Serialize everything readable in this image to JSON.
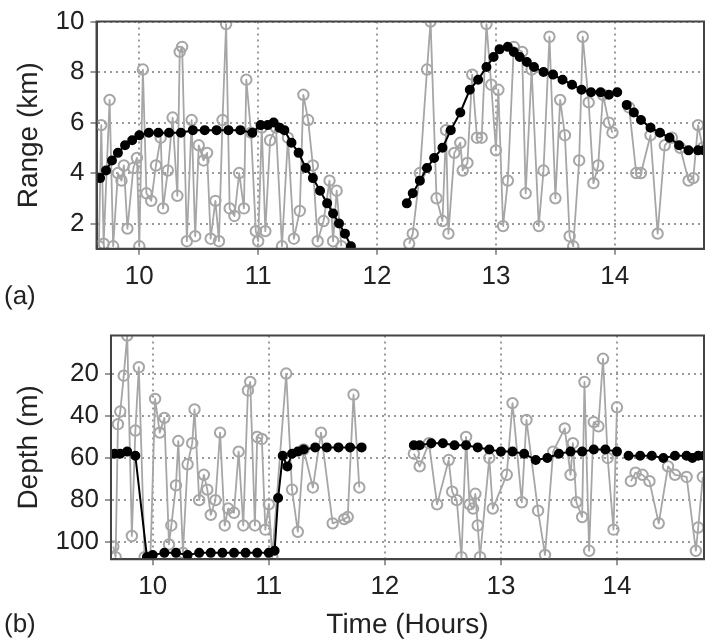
{
  "chart_data": [
    {
      "type": "line",
      "ylabel": "Range (km)",
      "annotations": [
        "(a)"
      ],
      "xlim": [
        9.64,
        14.75
      ],
      "xticks": [
        10,
        11,
        12,
        13,
        14
      ],
      "ylim": [
        1,
        10
      ],
      "yticks": [
        2,
        4,
        6,
        8,
        10
      ],
      "grid": true,
      "legend": false,
      "marker": "circle",
      "line_style": "solid",
      "series": [
        {
          "color": "#a6a6a6",
          "x": [
            9.66,
            9.68,
            9.7,
            9.75,
            9.78,
            9.82,
            9.85,
            9.87,
            9.9,
            9.95,
            9.98,
            10.0,
            10.03,
            10.06,
            10.1,
            10.14,
            10.18,
            10.2,
            10.24,
            10.28,
            10.32,
            10.34,
            10.36,
            10.4,
            10.44,
            10.47,
            10.5,
            10.54,
            10.57,
            10.6,
            10.64,
            10.67,
            10.7,
            10.73,
            10.76,
            10.8,
            10.84,
            10.88,
            10.9,
            10.94,
            10.98,
            11.0,
            11.03,
            11.06,
            11.1,
            11.15,
            11.2,
            11.25,
            11.3,
            11.35,
            11.38,
            11.42,
            11.46,
            11.5,
            11.55,
            11.6,
            11.63,
            11.66,
            11.7,
            12.0,
            12.27,
            12.3,
            12.36,
            12.42,
            12.45,
            12.5,
            12.55,
            12.58,
            12.6,
            12.65,
            12.7,
            12.72,
            12.76,
            12.8,
            12.84,
            12.88,
            12.92,
            12.96,
            13.0,
            13.02,
            13.06,
            13.1,
            13.15,
            13.22,
            13.25,
            13.3,
            13.36,
            13.4,
            13.45,
            13.5,
            13.54,
            13.58,
            13.62,
            13.65,
            13.7,
            13.73,
            13.78,
            13.82,
            13.86,
            13.9,
            13.95,
            13.98,
            14.06,
            14.12,
            14.18,
            14.22,
            14.3,
            14.36,
            14.42,
            14.48,
            14.55,
            14.62,
            14.66,
            14.7,
            14.74
          ],
          "values": [
            1.1,
            5.9,
            1.2,
            6.9,
            1.1,
            4.0,
            3.7,
            4.3,
            1.8,
            4.2,
            4.6,
            1.1,
            8.1,
            3.2,
            2.9,
            4.3,
            5.4,
            2.6,
            4.1,
            6.2,
            3.1,
            8.8,
            9.0,
            1.3,
            6.1,
            1.5,
            5.1,
            4.5,
            4.8,
            1.4,
            2.9,
            1.3,
            6.1,
            9.9,
            2.6,
            2.3,
            4.0,
            2.6,
            7.7,
            5.6,
            1.7,
            1.3,
            5.8,
            1.7,
            5.3,
            5.8,
            1.1,
            5.4,
            1.4,
            2.5,
            7.1,
            6.1,
            4.3,
            1.3,
            2.1,
            3.7,
            1.3,
            3.3,
            1.1,
            null,
            1.2,
            1.6,
            4.0,
            8.1,
            10.0,
            3.0,
            2.1,
            5.7,
            1.6,
            4.8,
            5.2,
            4.1,
            4.4,
            7.9,
            5.4,
            5.4,
            9.9,
            7.5,
            4.9,
            7.3,
            1.9,
            3.7,
            9.0,
            8.8,
            3.2,
            8.1,
            1.9,
            4.1,
            9.4,
            3.0,
            6.9,
            5.5,
            1.5,
            1.1,
            4.5,
            9.4,
            6.8,
            3.6,
            4.3,
            7.1,
            6.0,
            5.6,
            null,
            6.6,
            4.0,
            4.0,
            5.5,
            1.6,
            5.1,
            5.4,
            5.0,
            3.7,
            3.8,
            5.9,
            5.0
          ]
        },
        {
          "color": "#000000",
          "x": [
            9.67,
            9.72,
            9.77,
            9.82,
            9.88,
            9.94,
            10.0,
            10.08,
            10.16,
            10.25,
            10.35,
            10.45,
            10.55,
            10.65,
            10.75,
            10.85,
            10.95,
            11.02,
            11.08,
            11.13,
            11.18,
            11.22,
            11.28,
            11.34,
            11.4,
            11.46,
            11.52,
            11.58,
            11.63,
            11.68,
            11.73,
            11.78,
            12.0,
            12.25,
            12.3,
            12.36,
            12.42,
            12.48,
            12.55,
            12.62,
            12.7,
            12.78,
            12.85,
            12.92,
            12.98,
            13.03,
            13.1,
            13.15,
            13.2,
            13.26,
            13.32,
            13.4,
            13.48,
            13.56,
            13.64,
            13.72,
            13.8,
            13.88,
            13.95,
            14.02,
            14.06,
            14.1,
            14.16,
            14.22,
            14.3,
            14.38,
            14.46,
            14.54,
            14.62,
            14.7,
            14.75
          ],
          "values": [
            3.8,
            4.1,
            4.5,
            4.8,
            5.1,
            5.3,
            5.5,
            5.6,
            5.6,
            5.6,
            5.6,
            5.7,
            5.7,
            5.7,
            5.7,
            5.7,
            5.6,
            5.9,
            5.9,
            6.0,
            5.8,
            5.7,
            5.2,
            4.8,
            4.2,
            3.8,
            3.3,
            2.8,
            2.4,
            2.0,
            1.6,
            1.1,
            null,
            2.8,
            3.2,
            3.7,
            4.2,
            4.6,
            5.0,
            5.7,
            6.4,
            7.3,
            7.7,
            8.2,
            8.6,
            8.9,
            9.0,
            8.8,
            8.6,
            8.4,
            8.2,
            8.0,
            7.9,
            7.7,
            7.5,
            7.3,
            7.2,
            7.2,
            7.1,
            7.2,
            null,
            6.7,
            6.4,
            6.1,
            5.8,
            5.6,
            5.4,
            5.1,
            4.9,
            4.9,
            4.9
          ]
        }
      ]
    },
    {
      "type": "line",
      "xlabel": "Time (Hours)",
      "ylabel": "Depth (m)",
      "annotations": [
        "(b)"
      ],
      "xlim": [
        9.64,
        14.75
      ],
      "xticks": [
        10,
        11,
        12,
        13,
        14
      ],
      "ylim": [
        108,
        2
      ],
      "yticks": [
        20,
        40,
        60,
        80,
        100
      ],
      "grid": true,
      "legend": false,
      "marker": "circle",
      "line_style": "solid",
      "series": [
        {
          "color": "#a6a6a6",
          "x": [
            9.66,
            9.68,
            9.7,
            9.72,
            9.75,
            9.78,
            9.82,
            9.85,
            9.88,
            9.93,
            9.98,
            10.02,
            10.06,
            10.1,
            10.14,
            10.16,
            10.2,
            10.22,
            10.26,
            10.3,
            10.34,
            10.36,
            10.4,
            10.44,
            10.47,
            10.5,
            10.54,
            10.58,
            10.62,
            10.65,
            10.7,
            10.74,
            10.78,
            10.82,
            10.84,
            10.88,
            10.9,
            10.94,
            10.97,
            11.0,
            11.03,
            11.15,
            11.2,
            11.25,
            11.3,
            11.38,
            11.45,
            11.55,
            11.65,
            11.68,
            11.73,
            11.78,
            12.0,
            12.25,
            12.3,
            12.38,
            12.45,
            12.55,
            12.58,
            12.62,
            12.66,
            12.7,
            12.73,
            12.76,
            12.78,
            12.8,
            12.82,
            12.9,
            12.93,
            13.05,
            13.1,
            13.18,
            13.22,
            13.32,
            13.38,
            13.45,
            13.55,
            13.6,
            13.62,
            13.65,
            13.7,
            13.72,
            13.76,
            13.8,
            13.84,
            13.88,
            13.92,
            13.97,
            14.0,
            14.06,
            14.12,
            14.16,
            14.22,
            14.28,
            14.36,
            14.44,
            14.5,
            14.6,
            14.68,
            14.7,
            14.74
          ],
          "values": [
            102,
            107,
            44,
            38,
            21,
            2,
            97,
            47,
            17,
            107,
            107,
            32,
            48,
            41,
            101,
            92,
            73,
            52,
            105,
            63,
            53,
            37,
            80,
            68,
            75,
            87,
            80,
            48,
            92,
            84,
            86,
            57,
            92,
            28,
            24,
            92,
            50,
            51,
            94,
            82,
            107,
            20,
            75,
            95,
            56,
            74,
            48,
            91,
            89,
            88,
            30,
            74,
            null,
            58,
            64,
            53,
            82,
            61,
            76,
            80,
            107,
            50,
            82,
            84,
            77,
            92,
            107,
            60,
            84,
            68,
            34,
            81,
            42,
            85,
            106,
            57,
            46,
            68,
            53,
            81,
            88,
            24,
            104,
            43,
            45,
            13,
            60,
            94,
            36,
            null,
            71,
            67,
            68,
            71,
            91,
            64,
            68,
            69,
            104,
            93,
            69
          ]
        },
        {
          "color": "#000000",
          "x": [
            9.67,
            9.72,
            9.78,
            9.85,
            9.95,
            10.0,
            10.1,
            10.2,
            10.3,
            10.4,
            10.5,
            10.6,
            10.7,
            10.8,
            10.9,
            11.0,
            11.05,
            11.08,
            11.12,
            11.16,
            11.2,
            11.25,
            11.3,
            11.4,
            11.5,
            11.6,
            11.7,
            11.8,
            12.0,
            12.25,
            12.3,
            12.4,
            12.5,
            12.6,
            12.7,
            12.8,
            12.9,
            13.0,
            13.1,
            13.2,
            13.3,
            13.4,
            13.5,
            13.6,
            13.7,
            13.8,
            13.9,
            14.0,
            14.05,
            14.1,
            14.2,
            14.3,
            14.4,
            14.5,
            14.6,
            14.65,
            14.7,
            14.75
          ],
          "values": [
            58,
            58,
            57,
            59,
            107,
            106,
            105,
            105,
            106,
            105,
            105,
            105,
            105,
            105,
            105,
            105,
            104,
            79,
            59,
            64,
            58,
            57,
            56,
            55,
            55,
            55,
            55,
            55,
            null,
            54,
            54,
            53,
            53,
            54,
            54,
            55,
            56,
            57,
            57,
            58,
            61,
            60,
            58,
            57,
            57,
            56,
            56,
            57,
            null,
            59,
            59,
            59,
            60,
            59,
            59,
            60,
            59,
            59
          ]
        }
      ]
    }
  ]
}
